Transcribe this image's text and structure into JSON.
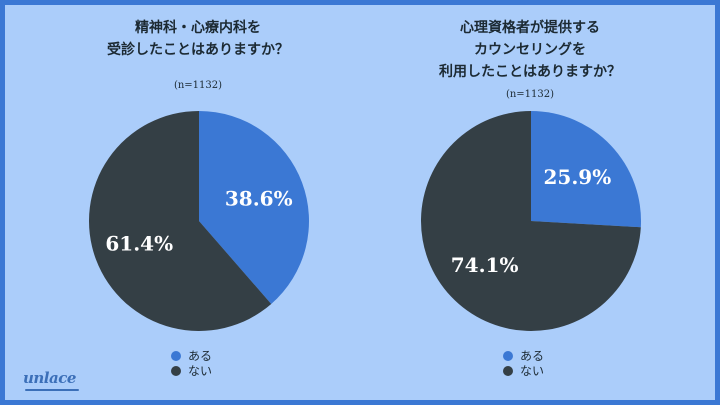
{
  "brand": "unlace",
  "colors": {
    "yes": "#3b78d4",
    "no": "#343f45"
  },
  "chart_data": [
    {
      "type": "pie",
      "title": "精神科・心療内科を\n受診したことはありますか？",
      "note": "(n=1132)",
      "categories": [
        "ある",
        "ない"
      ],
      "values": [
        38.6,
        61.4
      ],
      "labels": [
        "38.6%",
        "61.4%"
      ],
      "legend": "bottom"
    },
    {
      "type": "pie",
      "title": "心理資格者が提供する\nカウンセリングを\n利用したことはありますか？",
      "note": "(n=1132)",
      "categories": [
        "ある",
        "ない"
      ],
      "values": [
        25.9,
        74.1
      ],
      "labels": [
        "25.9%",
        "74.1%"
      ],
      "legend": "bottom"
    }
  ]
}
